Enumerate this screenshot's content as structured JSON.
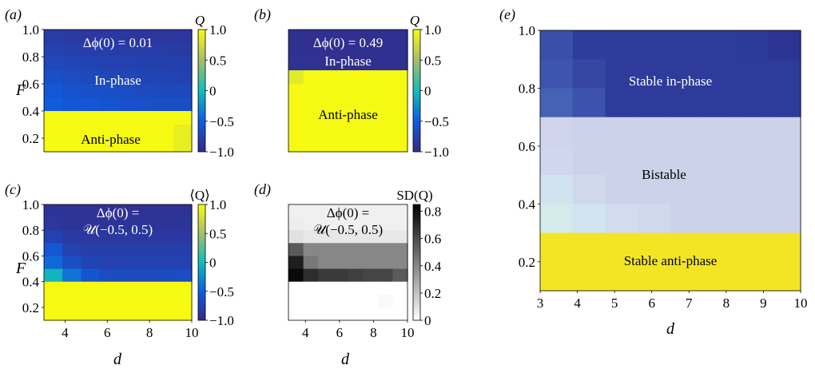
{
  "chart_data": [
    {
      "type": "heatmap",
      "panel_label": "(a)",
      "ylabel": "F",
      "colorbar_label": "Q",
      "colorbar_ticks": [
        "1.0",
        "0.5",
        "0",
        "−0.5",
        "−1.0"
      ],
      "clim": [
        -1.0,
        1.0
      ],
      "y_ticks": [
        "1.0",
        "0.8",
        "0.6",
        "0.4",
        "0.2"
      ],
      "title": "Δϕ(0) = 0.01",
      "annotations": [
        "In-phase",
        "Anti-phase"
      ],
      "x_range": [
        3,
        10
      ],
      "y_range": [
        0.1,
        1.0
      ],
      "values": [
        [
          -0.82,
          -0.84,
          -0.86,
          -0.86,
          -0.86,
          -0.88,
          -0.88,
          -0.88
        ],
        [
          -0.76,
          -0.78,
          -0.8,
          -0.8,
          -0.82,
          -0.82,
          -0.82,
          -0.84
        ],
        [
          -0.7,
          -0.72,
          -0.74,
          -0.76,
          -0.76,
          -0.78,
          -0.78,
          -0.78
        ],
        [
          -0.62,
          -0.66,
          -0.7,
          -0.72,
          -0.72,
          -0.74,
          -0.74,
          -0.76
        ],
        [
          -0.56,
          -0.6,
          -0.62,
          -0.64,
          -0.66,
          -0.68,
          -0.7,
          -0.7
        ],
        [
          -0.5,
          -0.54,
          -0.56,
          -0.58,
          -0.6,
          -0.62,
          -0.64,
          -0.64
        ],
        [
          0.98,
          0.98,
          0.98,
          0.98,
          0.98,
          0.98,
          0.98,
          0.98
        ],
        [
          0.98,
          0.98,
          0.98,
          0.98,
          0.98,
          0.98,
          0.98,
          0.9
        ],
        [
          0.98,
          0.98,
          0.98,
          0.98,
          0.98,
          0.98,
          0.98,
          0.9
        ]
      ]
    },
    {
      "type": "heatmap",
      "panel_label": "(b)",
      "colorbar_label": "Q",
      "colorbar_ticks": [
        "1.0",
        "0.5",
        "0",
        "−0.5",
        "−1.0"
      ],
      "clim": [
        -1.0,
        1.0
      ],
      "title": "Δϕ(0) = 0.49",
      "annotations": [
        "In-phase",
        "Anti-phase"
      ],
      "x_range": [
        3,
        10
      ],
      "y_range": [
        0.1,
        1.0
      ],
      "values": [
        [
          -0.94,
          -0.94,
          -0.94,
          -0.94,
          -0.94,
          -0.94,
          -0.94,
          -0.94
        ],
        [
          -0.94,
          -0.94,
          -0.94,
          -0.94,
          -0.94,
          -0.94,
          -0.94,
          -0.94
        ],
        [
          -0.92,
          -0.92,
          -0.94,
          -0.94,
          -0.94,
          -0.94,
          -0.94,
          -0.94
        ],
        [
          0.85,
          0.98,
          0.98,
          0.98,
          0.98,
          0.98,
          0.98,
          0.98
        ],
        [
          0.98,
          0.98,
          0.98,
          0.98,
          0.98,
          0.98,
          0.98,
          0.98
        ],
        [
          0.98,
          0.98,
          0.98,
          0.98,
          0.98,
          0.98,
          0.98,
          0.98
        ],
        [
          0.98,
          0.98,
          0.98,
          0.98,
          0.98,
          0.98,
          0.98,
          0.98
        ],
        [
          0.98,
          0.98,
          0.98,
          0.98,
          0.98,
          0.98,
          0.98,
          0.98
        ],
        [
          0.98,
          0.98,
          0.98,
          0.98,
          0.98,
          0.98,
          0.98,
          0.98
        ]
      ]
    },
    {
      "type": "heatmap",
      "panel_label": "(c)",
      "ylabel": "F",
      "xlabel": "d",
      "colorbar_label": "⟨Q⟩",
      "colorbar_ticks": [
        "1.0",
        "0.5",
        "0",
        "−0.5",
        "−1.0"
      ],
      "clim": [
        -1.0,
        1.0
      ],
      "y_ticks": [
        "1.0",
        "0.8",
        "0.6",
        "0.4",
        "0.2"
      ],
      "x_ticks": [
        "4",
        "6",
        "8",
        "10"
      ],
      "title_lines": [
        "Δϕ(0) =",
        "𝒰(−0.5, 0.5)"
      ],
      "x_range": [
        3,
        10
      ],
      "y_range": [
        0.1,
        1.0
      ],
      "values": [
        [
          -0.9,
          -0.92,
          -0.92,
          -0.92,
          -0.92,
          -0.92,
          -0.92,
          -0.92
        ],
        [
          -0.88,
          -0.9,
          -0.9,
          -0.9,
          -0.9,
          -0.9,
          -0.9,
          -0.9
        ],
        [
          -0.76,
          -0.84,
          -0.86,
          -0.86,
          -0.86,
          -0.86,
          -0.86,
          -0.86
        ],
        [
          -0.56,
          -0.76,
          -0.8,
          -0.8,
          -0.8,
          -0.8,
          -0.8,
          -0.8
        ],
        [
          -0.44,
          -0.64,
          -0.74,
          -0.76,
          -0.76,
          -0.76,
          -0.76,
          -0.76
        ],
        [
          -0.05,
          -0.38,
          -0.58,
          -0.66,
          -0.68,
          -0.68,
          -0.68,
          -0.66
        ],
        [
          0.98,
          0.98,
          0.98,
          0.98,
          0.98,
          0.98,
          0.98,
          0.98
        ],
        [
          0.98,
          0.98,
          0.98,
          0.98,
          0.98,
          0.98,
          0.98,
          0.98
        ],
        [
          0.98,
          0.98,
          0.98,
          0.98,
          0.98,
          0.98,
          0.98,
          0.98
        ]
      ]
    },
    {
      "type": "heatmap",
      "panel_label": "(d)",
      "xlabel": "d",
      "colorbar_label": "SD(Q)",
      "colorbar_ticks": [
        "0.8",
        "0.6",
        "0.4",
        "0.2",
        "0"
      ],
      "clim": [
        0,
        0.85
      ],
      "x_ticks": [
        "4",
        "6",
        "8",
        "10"
      ],
      "title_lines": [
        "Δϕ(0) =",
        "𝒰(−0.5, 0.5)"
      ],
      "x_range": [
        3,
        10
      ],
      "y_range": [
        0.1,
        1.0
      ],
      "values": [
        [
          0.05,
          0.05,
          0.05,
          0.05,
          0.05,
          0.05,
          0.05,
          0.05
        ],
        [
          0.06,
          0.05,
          0.05,
          0.05,
          0.05,
          0.05,
          0.05,
          0.05
        ],
        [
          0.1,
          0.08,
          0.08,
          0.08,
          0.08,
          0.08,
          0.08,
          0.08
        ],
        [
          0.55,
          0.4,
          0.4,
          0.4,
          0.4,
          0.4,
          0.4,
          0.4
        ],
        [
          0.75,
          0.45,
          0.4,
          0.4,
          0.4,
          0.4,
          0.4,
          0.4
        ],
        [
          0.82,
          0.7,
          0.66,
          0.66,
          0.64,
          0.62,
          0.62,
          0.55
        ],
        [
          0.0,
          0.0,
          0.0,
          0.0,
          0.0,
          0.0,
          0.0,
          0.0
        ],
        [
          0.0,
          0.0,
          0.0,
          0.0,
          0.0,
          0.0,
          0.02,
          0.0
        ],
        [
          0.0,
          0.0,
          0.0,
          0.0,
          0.0,
          0.0,
          0.0,
          0.0
        ]
      ]
    },
    {
      "type": "heatmap",
      "panel_label": "(e)",
      "xlabel": "d",
      "y_ticks": [
        "1.0",
        "0.8",
        "0.6",
        "0.4",
        "0.2"
      ],
      "x_ticks": [
        "3",
        "4",
        "5",
        "6",
        "7",
        "8",
        "9",
        "10"
      ],
      "annotations": [
        "Stable in-phase",
        "Bistable",
        "Stable anti-phase"
      ],
      "x_range": [
        3,
        10
      ],
      "y_range": [
        0.1,
        1.0
      ],
      "cells": [
        [
          "#3a4fa9",
          "#2e3c9c",
          "#2e3b9b",
          "#2e3b9b",
          "#2e3b9b",
          "#2e3b9b",
          "#2e3a9a",
          "#2b3393"
        ],
        [
          "#3d55ad",
          "#3547a3",
          "#2e3b9b",
          "#2e3b9b",
          "#2e3b9b",
          "#2e3b9b",
          "#2e3b9b",
          "#2e3b9b"
        ],
        [
          "#4562b4",
          "#3d52ab",
          "#2e3b9b",
          "#2e3b9b",
          "#2e3b9b",
          "#2e3b9b",
          "#2e3b9b",
          "#2e3b9b"
        ],
        [
          "#cfd4ec",
          "#cdd2eb",
          "#cdd2eb",
          "#cdd2eb",
          "#cdd2eb",
          "#cdd2eb",
          "#cdd2eb",
          "#cdd2eb"
        ],
        [
          "#cfd6ed",
          "#cdd2eb",
          "#cdd2eb",
          "#cdd2eb",
          "#cdd2eb",
          "#cdd2eb",
          "#cdd2eb",
          "#cdd2eb"
        ],
        [
          "#d2e3f0",
          "#d0d8ee",
          "#cdd2eb",
          "#cdd2eb",
          "#cdd2eb",
          "#cdd2eb",
          "#cdd2eb",
          "#cdd2eb"
        ],
        [
          "#d5eaea",
          "#d3e4f1",
          "#d1dcef",
          "#d0d8ee",
          "#cdd2eb",
          "#cdd2eb",
          "#cdd2eb",
          "#cdd2eb"
        ],
        [
          "#f2e524",
          "#f2e524",
          "#f2e524",
          "#f2e524",
          "#f2e524",
          "#f2e524",
          "#f2e524",
          "#f2e524"
        ],
        [
          "#f2e524",
          "#f2e524",
          "#f2e524",
          "#f2e524",
          "#f2e524",
          "#f2e524",
          "#f2e524",
          "#f2e524"
        ]
      ]
    }
  ]
}
